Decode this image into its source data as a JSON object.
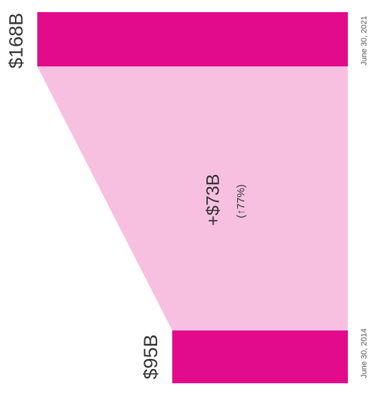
{
  "chart_data": {
    "type": "bar",
    "orientation": "horizontal",
    "categories": [
      "June 30, 2021",
      "June 30, 2014"
    ],
    "values": [
      168,
      95
    ],
    "value_labels": [
      "$168B",
      "$95B"
    ],
    "color": "#e20b8c",
    "connector_color": "#f7c0e1",
    "xlim": [
      0,
      170
    ],
    "annotations": [
      "+$73B",
      "(↑77%)"
    ]
  }
}
